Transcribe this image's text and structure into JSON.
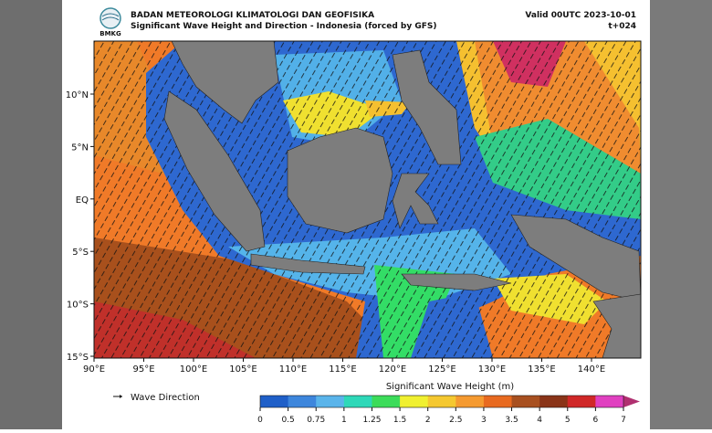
{
  "header": {
    "agency": "BADAN METEOROLOGI KLIMATOLOGI DAN GEOFISIKA",
    "subtitle": "Significant Wave Height and Direction - Indonesia (forced by GFS)",
    "valid": "Valid 00UTC 2023-10-01",
    "lead": "t+024",
    "logo_text": "BMKG"
  },
  "map": {
    "lat_labels": [
      "10°N",
      "5°N",
      "EQ",
      "5°S",
      "10°S",
      "15°S"
    ],
    "lon_labels": [
      "90°E",
      "95°E",
      "100°E",
      "105°E",
      "110°E",
      "115°E",
      "120°E",
      "125°E",
      "130°E",
      "135°E",
      "140°E"
    ]
  },
  "legend": {
    "arrow_label": "Wave Direction"
  },
  "colorbar": {
    "title": "Significant Wave Height (m)",
    "ticks": [
      "0",
      "0.5",
      "0.75",
      "1",
      "1.25",
      "1.5",
      "2",
      "2.5",
      "3",
      "3.5",
      "4",
      "5",
      "6",
      "7"
    ]
  }
}
